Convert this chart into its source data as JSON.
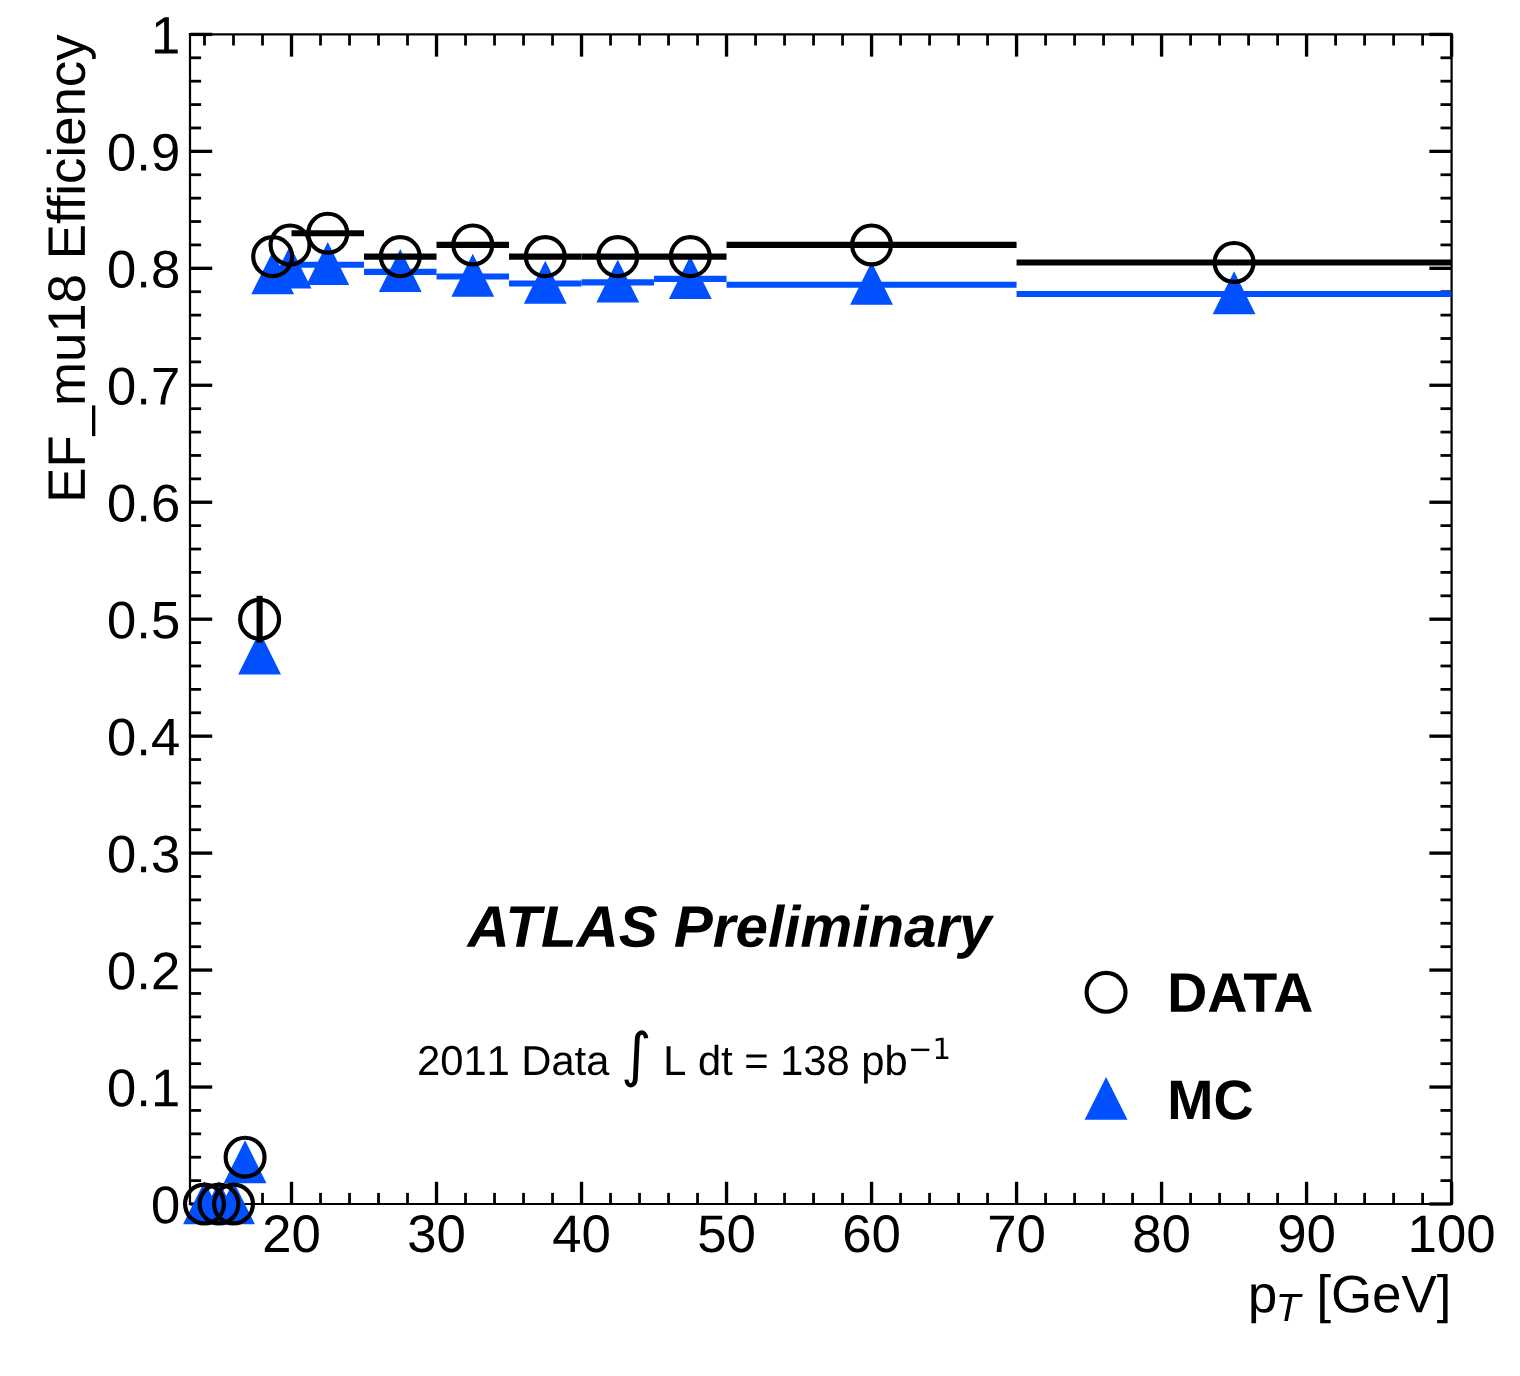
{
  "chart_data": {
    "type": "scatter",
    "xlabel": "p$_{T}$ [GeV]",
    "ylabel": "EF_mu18 Efficiency",
    "x": [
      14,
      15,
      16,
      16.8,
      17.8,
      18.7,
      19.9,
      22.5,
      27.5,
      32.5,
      37.5,
      42.5,
      47.5,
      60,
      85
    ],
    "series": [
      {
        "name": "DATA",
        "color": "#000000",
        "marker": "circle",
        "values": [
          0,
          0,
          0,
          0.04,
          0.5,
          0.81,
          0.82,
          0.83,
          0.81,
          0.82,
          0.81,
          0.81,
          0.81,
          0.82,
          0.805
        ],
        "errors": [
          null,
          null,
          null,
          null,
          0.02,
          null,
          null,
          null,
          null,
          null,
          null,
          null,
          null,
          null,
          null
        ],
        "xerrors": [
          null,
          null,
          null,
          null,
          null,
          null,
          null,
          2.5,
          2.5,
          2.5,
          2.5,
          2.5,
          2.5,
          10,
          15
        ]
      },
      {
        "name": "MC",
        "color": "#0050ff",
        "marker": "triangle",
        "values": [
          0,
          0,
          0,
          0.035,
          0.47,
          0.795,
          0.8,
          0.803,
          0.797,
          0.793,
          0.787,
          0.788,
          0.791,
          0.786,
          0.778
        ],
        "xerrors": [
          null,
          null,
          null,
          null,
          null,
          null,
          null,
          2.5,
          2.5,
          2.5,
          2.5,
          2.5,
          2.5,
          10,
          15
        ]
      }
    ],
    "xlim": [
      13,
      100
    ],
    "ylim": [
      0,
      1
    ],
    "xticks": [
      20,
      30,
      40,
      50,
      60,
      70,
      80,
      90,
      100
    ],
    "yticks": [
      0,
      0.1,
      0.2,
      0.3,
      0.4,
      0.5,
      0.6,
      0.7,
      0.8,
      0.9,
      1
    ],
    "annotations": [
      "ATLAS Preliminary",
      "2011 Data ∫ L dt = 138 pb$^{−1}$"
    ],
    "legend": "bottom right",
    "grid": false
  }
}
